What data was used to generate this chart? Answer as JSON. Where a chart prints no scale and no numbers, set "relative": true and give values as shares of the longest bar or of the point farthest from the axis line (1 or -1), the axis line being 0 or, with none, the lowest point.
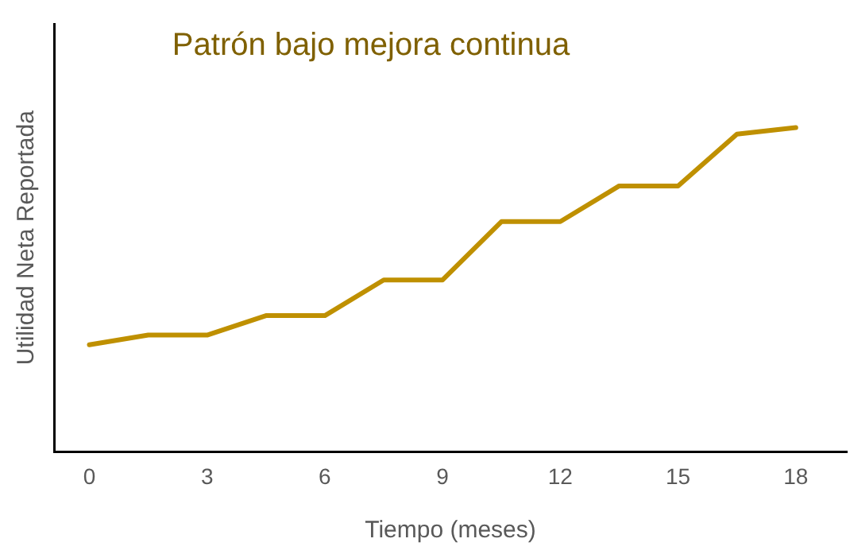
{
  "chart_data": {
    "type": "line",
    "title": "Patrón bajo mejora continua",
    "xlabel": "Tiempo (meses)",
    "ylabel": "Utilidad Neta Reportada",
    "relative": true,
    "x": [
      0,
      1.5,
      3,
      4.5,
      6,
      7.5,
      9,
      10.5,
      12,
      13.5,
      15,
      16.5,
      18
    ],
    "series": [
      {
        "color": "#bf9000",
        "values": [
          0.33,
          0.36,
          0.36,
          0.42,
          0.42,
          0.53,
          0.53,
          0.71,
          0.71,
          0.82,
          0.82,
          0.98,
          1
        ]
      }
    ],
    "xlim": [
      -0.9,
      19.3
    ],
    "xticks": [
      0,
      3,
      6,
      9,
      12,
      15,
      18
    ],
    "tick_labels": "x",
    "grid": false,
    "legend": false,
    "marker": "none",
    "line_style": "solid"
  }
}
